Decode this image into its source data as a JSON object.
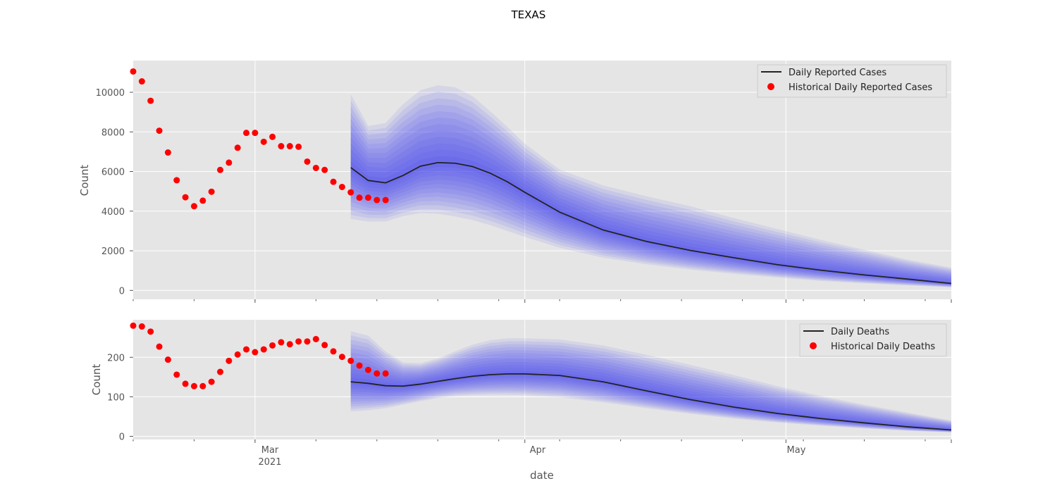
{
  "figure": {
    "suptitle": "TEXAS",
    "xlabel": "date",
    "x_major_ticks": [
      {
        "label": "Mar",
        "sublabel": "2021"
      },
      {
        "label": "Apr",
        "sublabel": ""
      },
      {
        "label": "May",
        "sublabel": ""
      }
    ]
  },
  "colors": {
    "background": "#e5e5e5",
    "grid": "#ffffff",
    "forecast_line": "#222222",
    "forecast_band": "#3b3bf0",
    "historical_points": "#ff0000",
    "tick_text": "#555555",
    "axis_label_text": "#555555"
  },
  "chart_data": [
    {
      "type": "line",
      "ylabel": "Count",
      "xlim": [
        "2021-02-15",
        "2021-05-20"
      ],
      "ylim": [
        -450,
        11600
      ],
      "yticks": [
        0,
        2000,
        4000,
        6000,
        8000,
        10000
      ],
      "x_major_ticks": [
        "2021-03-01",
        "2021-04-01",
        "2021-05-01"
      ],
      "grid": true,
      "legend": "top-right",
      "series": [
        {
          "name": "Historical Daily Reported Cases",
          "kind": "scatter",
          "x": [
            "2021-02-15",
            "2021-02-16",
            "2021-02-17",
            "2021-02-18",
            "2021-02-19",
            "2021-02-20",
            "2021-02-21",
            "2021-02-22",
            "2021-02-23",
            "2021-02-24",
            "2021-02-25",
            "2021-02-26",
            "2021-02-27",
            "2021-02-28",
            "2021-03-01",
            "2021-03-02",
            "2021-03-03",
            "2021-03-04",
            "2021-03-05",
            "2021-03-06",
            "2021-03-07",
            "2021-03-08",
            "2021-03-09",
            "2021-03-10",
            "2021-03-11",
            "2021-03-12",
            "2021-03-13",
            "2021-03-14",
            "2021-03-15",
            "2021-03-16",
            "2021-03-17",
            "2021-03-18",
            "2021-03-19"
          ],
          "y": [
            11050,
            10550,
            9570,
            8060,
            6960,
            5560,
            4700,
            4250,
            4530,
            4980,
            6080,
            6450,
            7200,
            7950,
            7950,
            7500,
            7750,
            7280,
            7280,
            7250,
            6500,
            6180,
            6080,
            5480,
            5220,
            4950,
            4680,
            4680,
            4560,
            4560,
            null,
            null,
            null
          ]
        },
        {
          "name": "Daily Reported Cases",
          "kind": "forecast",
          "x": [
            "2021-03-12",
            "2021-03-14",
            "2021-03-16",
            "2021-03-18",
            "2021-03-20",
            "2021-03-22",
            "2021-03-24",
            "2021-03-26",
            "2021-03-28",
            "2021-03-30",
            "2021-04-01",
            "2021-04-05",
            "2021-04-10",
            "2021-04-15",
            "2021-04-20",
            "2021-04-25",
            "2021-04-30",
            "2021-05-05",
            "2021-05-10",
            "2021-05-15",
            "2021-05-20"
          ],
          "median": [
            6200,
            5550,
            5430,
            5800,
            6270,
            6450,
            6420,
            6250,
            5920,
            5480,
            4950,
            3950,
            3050,
            2470,
            2020,
            1650,
            1300,
            1020,
            780,
            570,
            350
          ],
          "lower": [
            3600,
            3480,
            3480,
            3750,
            3900,
            3870,
            3730,
            3550,
            3300,
            3000,
            2700,
            2150,
            1650,
            1320,
            1050,
            840,
            650,
            480,
            360,
            250,
            160
          ],
          "upper": [
            9900,
            8300,
            8450,
            9400,
            10100,
            10350,
            10250,
            9800,
            9050,
            8250,
            7400,
            6100,
            5300,
            4750,
            4250,
            3650,
            3100,
            2550,
            2050,
            1550,
            1150
          ]
        }
      ]
    },
    {
      "type": "line",
      "ylabel": "Count",
      "xlim": [
        "2021-02-15",
        "2021-05-20"
      ],
      "ylim": [
        -8,
        295
      ],
      "yticks": [
        0,
        100,
        200
      ],
      "x_major_ticks": [
        "2021-03-01",
        "2021-04-01",
        "2021-05-01"
      ],
      "grid": true,
      "legend": "top-right",
      "series": [
        {
          "name": "Historical Daily Deaths",
          "kind": "scatter",
          "x": [
            "2021-02-15",
            "2021-02-16",
            "2021-02-17",
            "2021-02-18",
            "2021-02-19",
            "2021-02-20",
            "2021-02-21",
            "2021-02-22",
            "2021-02-23",
            "2021-02-24",
            "2021-02-25",
            "2021-02-26",
            "2021-02-27",
            "2021-02-28",
            "2021-03-01",
            "2021-03-02",
            "2021-03-03",
            "2021-03-04",
            "2021-03-05",
            "2021-03-06",
            "2021-03-07",
            "2021-03-08",
            "2021-03-09",
            "2021-03-10",
            "2021-03-11",
            "2021-03-12",
            "2021-03-13",
            "2021-03-14",
            "2021-03-15",
            "2021-03-16",
            "2021-03-17"
          ],
          "y": [
            280,
            278,
            265,
            227,
            194,
            156,
            133,
            127,
            127,
            138,
            163,
            191,
            207,
            220,
            213,
            220,
            230,
            238,
            233,
            240,
            240,
            246,
            231,
            215,
            201,
            191,
            179,
            168,
            159,
            159,
            null
          ]
        },
        {
          "name": "Daily Deaths",
          "kind": "forecast",
          "x": [
            "2021-03-12",
            "2021-03-14",
            "2021-03-16",
            "2021-03-18",
            "2021-03-20",
            "2021-03-22",
            "2021-03-24",
            "2021-03-26",
            "2021-03-28",
            "2021-03-30",
            "2021-04-01",
            "2021-04-05",
            "2021-04-10",
            "2021-04-15",
            "2021-04-20",
            "2021-04-25",
            "2021-04-30",
            "2021-05-05",
            "2021-05-10",
            "2021-05-15",
            "2021-05-20"
          ],
          "median": [
            138,
            134,
            128,
            127,
            132,
            139,
            146,
            152,
            156,
            158,
            158,
            154,
            138,
            115,
            93,
            74,
            58,
            45,
            34,
            24,
            16
          ],
          "lower": [
            63,
            66,
            71,
            80,
            89,
            97,
            102,
            104,
            105,
            105,
            104,
            99,
            86,
            71,
            57,
            45,
            35,
            27,
            20,
            14,
            10
          ],
          "upper": [
            266,
            255,
            215,
            187,
            185,
            197,
            215,
            232,
            243,
            248,
            248,
            245,
            230,
            206,
            181,
            155,
            127,
            102,
            80,
            60,
            40
          ]
        }
      ]
    }
  ]
}
